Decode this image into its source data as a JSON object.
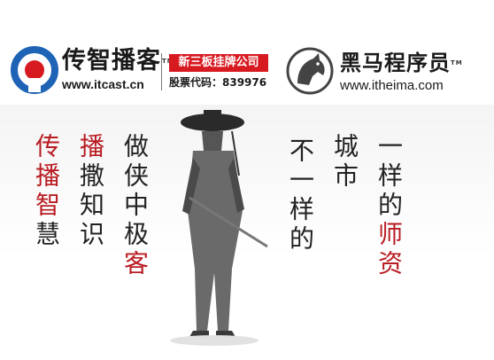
{
  "header": {
    "left_brand": {
      "name": "传智播客",
      "tm": "TM",
      "url": "www.itcast.cn"
    },
    "listing_badge": "新三板挂牌公司",
    "stock_code": "股票代码：839976",
    "right_brand": {
      "name": "黑马程序员",
      "tm": "TM",
      "url": "www.itheima.com"
    }
  },
  "poem": {
    "col1": {
      "p1": "传播",
      "p2": "智",
      "p3": "慧"
    },
    "col2": {
      "p1": "播",
      "p2": "撒知识"
    },
    "col3": {
      "p1": "做侠中极",
      "p2": "客"
    },
    "col4": "不一样的",
    "col5": "城市",
    "col6": {
      "p1": "一样的",
      "p2": "师资"
    }
  },
  "colors": {
    "brand_red": "#d71920",
    "ink": "#222222",
    "brand_blue": "#1e63b6"
  }
}
